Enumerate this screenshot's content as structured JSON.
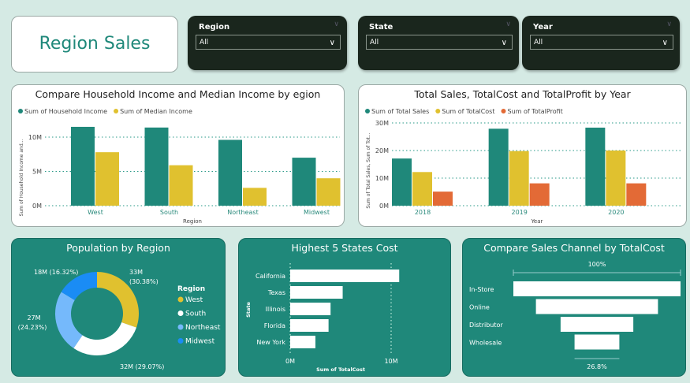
{
  "title": "Region Sales",
  "slicers": [
    {
      "label": "Region",
      "value": "All"
    },
    {
      "label": "State",
      "value": "All"
    },
    {
      "label": "Year",
      "value": "All"
    }
  ],
  "colors": {
    "teal": "#1f887a",
    "yellow": "#e0c12f",
    "orange": "#e36a36",
    "lightblue": "#75b9fb",
    "blue": "#1a8cf5",
    "white": "#ffffff"
  },
  "chart_data": [
    {
      "type": "bar",
      "title": "Compare Household Income and Median Income by egion",
      "xlabel": "Region",
      "ylabel": "Sum of Household Income and...",
      "categories": [
        "West",
        "South",
        "Northeast",
        "Midwest"
      ],
      "series": [
        {
          "name": "Sum of Household Income",
          "values": [
            11.5,
            11.4,
            9.6,
            7.0
          ]
        },
        {
          "name": "Sum of Median Income",
          "values": [
            7.8,
            5.9,
            2.6,
            4.0
          ]
        }
      ],
      "unit": "M",
      "ylim": [
        0,
        12
      ],
      "yticks": [
        "0M",
        "5M",
        "10M"
      ],
      "grid": true,
      "legend": "top-left"
    },
    {
      "type": "bar",
      "title": "Total Sales, TotalCost and TotalProfit by Year",
      "xlabel": "Year",
      "ylabel": "Sum of Total Sales, Sum of Tot...",
      "categories": [
        "2018",
        "2019",
        "2020"
      ],
      "series": [
        {
          "name": "Sum of Total Sales",
          "values": [
            17.1,
            27.9,
            28.3
          ]
        },
        {
          "name": "Sum of TotalCost",
          "values": [
            12.2,
            19.8,
            20.0
          ]
        },
        {
          "name": "Sum of TotalProfit",
          "values": [
            5.1,
            8.1,
            8.1
          ]
        }
      ],
      "unit": "M",
      "ylim": [
        0,
        30
      ],
      "yticks": [
        "0M",
        "10M",
        "20M",
        "30M"
      ],
      "grid": true,
      "legend": "top-left"
    },
    {
      "type": "pie",
      "title": "Population by Region",
      "legend_title": "Region",
      "categories": [
        "West",
        "South",
        "Northeast",
        "Midwest"
      ],
      "values": [
        33,
        32,
        27,
        18
      ],
      "labels": [
        "33M\n(30.38%)",
        "32M (29.07%)",
        "27M\n(24.23%)",
        "18M (16.32%)"
      ],
      "percents": [
        30.38,
        29.07,
        24.23,
        16.32
      ],
      "legend": "right"
    },
    {
      "type": "bar",
      "orientation": "horizontal",
      "title": "Highest 5 States Cost",
      "xlabel": "Sum of TotalCost",
      "ylabel": "State",
      "categories": [
        "California",
        "Texas",
        "Illinois",
        "Florida",
        "New York"
      ],
      "values": [
        10.8,
        5.2,
        4.0,
        3.8,
        2.5
      ],
      "unit": "M",
      "xticks": [
        "0M",
        "10M"
      ]
    },
    {
      "type": "funnel",
      "title": "Compare Sales Channel by TotalCost",
      "categories": [
        "In-Store",
        "Online",
        "Distributor",
        "Wholesale"
      ],
      "percents": [
        100,
        73,
        43.5,
        26.8
      ],
      "top_label": "100%",
      "bottom_label": "26.8%"
    }
  ]
}
